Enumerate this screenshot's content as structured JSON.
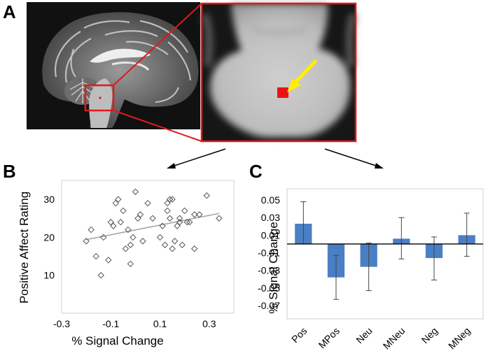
{
  "panels": {
    "a": {
      "label": "A"
    },
    "b": {
      "label": "B"
    },
    "c": {
      "label": "C"
    }
  },
  "colors": {
    "highlight_box": "#e0191b",
    "roi_fill": "#ee1111",
    "arrow": "#ffee00",
    "bar_fill": "#4a7fc4",
    "scatter_marker": "#555555",
    "trend_line": "#a6a6a6"
  },
  "chart_data": [
    {
      "type": "scatter",
      "title": "",
      "xlabel": "% Signal Change",
      "ylabel": "Positive Affect Rating",
      "xlim": [
        -0.3,
        0.4
      ],
      "ylim": [
        0,
        35
      ],
      "xticks": [
        "-0.3",
        "-0.1",
        "0.1",
        "0.3"
      ],
      "xtick_values": [
        -0.3,
        -0.1,
        0.1,
        0.3
      ],
      "yticks": [
        "10",
        "20",
        "30"
      ],
      "ytick_values": [
        10,
        20,
        30
      ],
      "grid": false,
      "marker": "diamond",
      "trendline": {
        "x": [
          -0.2,
          0.34
        ],
        "y": [
          19.4,
          26.3
        ]
      },
      "points": [
        [
          -0.2,
          19
        ],
        [
          -0.18,
          22
        ],
        [
          -0.16,
          15
        ],
        [
          -0.14,
          10
        ],
        [
          -0.13,
          20
        ],
        [
          -0.11,
          14
        ],
        [
          -0.1,
          24
        ],
        [
          -0.08,
          29
        ],
        [
          -0.07,
          30
        ],
        [
          -0.06,
          24
        ],
        [
          -0.09,
          23
        ],
        [
          -0.05,
          27
        ],
        [
          -0.04,
          17
        ],
        [
          -0.03,
          22
        ],
        [
          -0.02,
          13
        ],
        [
          -0.02,
          18
        ],
        [
          -0.01,
          20
        ],
        [
          0.0,
          32
        ],
        [
          0.01,
          25
        ],
        [
          0.02,
          26
        ],
        [
          0.03,
          19
        ],
        [
          0.05,
          29
        ],
        [
          0.07,
          25
        ],
        [
          0.1,
          20
        ],
        [
          0.11,
          23
        ],
        [
          0.12,
          18
        ],
        [
          0.13,
          27
        ],
        [
          0.13,
          29
        ],
        [
          0.14,
          25
        ],
        [
          0.14,
          30
        ],
        [
          0.15,
          30
        ],
        [
          0.15,
          17
        ],
        [
          0.16,
          19
        ],
        [
          0.17,
          23
        ],
        [
          0.18,
          25
        ],
        [
          0.18,
          24
        ],
        [
          0.19,
          18
        ],
        [
          0.2,
          27
        ],
        [
          0.21,
          24
        ],
        [
          0.22,
          24
        ],
        [
          0.24,
          26
        ],
        [
          0.24,
          17
        ],
        [
          0.26,
          26
        ],
        [
          0.29,
          31
        ],
        [
          0.34,
          25
        ]
      ]
    },
    {
      "type": "bar",
      "title": "",
      "xlabel": "",
      "ylabel": "% Signal Change",
      "categories": [
        "Pos",
        "MPos",
        "Neu",
        "MNeu",
        "Neg",
        "MNeg"
      ],
      "values": [
        0.023,
        -0.038,
        -0.026,
        0.006,
        -0.016,
        0.01
      ],
      "error_low": [
        0.0,
        -0.063,
        -0.053,
        -0.017,
        -0.041,
        -0.014
      ],
      "error_high": [
        0.048,
        -0.013,
        0.001,
        0.03,
        0.008,
        0.035
      ],
      "ylim": [
        -0.07,
        0.05
      ],
      "yticks": [
        "0.05",
        "0.03",
        "0.01",
        "-0.01",
        "-0.03",
        "-0.05",
        "-0.07"
      ],
      "ytick_values": [
        0.05,
        0.03,
        0.01,
        -0.01,
        -0.03,
        -0.05,
        -0.07
      ],
      "grid": false
    }
  ]
}
